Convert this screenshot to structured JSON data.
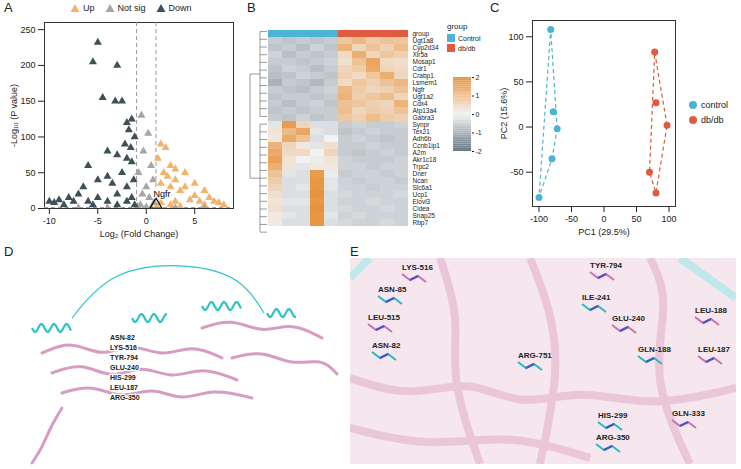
{
  "chart_data": [
    {
      "panel": "A",
      "type": "scatter",
      "x_label": "Log₂ (Fold Change)",
      "y_label": "-Log₁₀ (P value)",
      "xlim": [
        -10.5,
        9
      ],
      "xticks": [
        -10,
        -5,
        0,
        5
      ],
      "ylim": [
        0,
        260
      ],
      "yticks": [
        0,
        50,
        100,
        150,
        200,
        250
      ],
      "marker": "triangle",
      "legend": "top",
      "series": [
        {
          "name": "Up",
          "color": "#f2b36d",
          "x": [
            1.5,
            2,
            1.2,
            2.5,
            3,
            1.8,
            4,
            2.2,
            3,
            5,
            1.5,
            2.5,
            4,
            6,
            3.5,
            1.3,
            2,
            5,
            7,
            7.5,
            8,
            4.5,
            3,
            1.5,
            2.5,
            6,
            1.1,
            3.5,
            5.5,
            6.5
          ],
          "y": [
            90,
            85,
            70,
            60,
            55,
            50,
            50,
            45,
            40,
            35,
            35,
            30,
            30,
            25,
            25,
            20,
            20,
            18,
            10,
            8,
            5,
            12,
            10,
            8,
            5,
            5,
            3,
            3,
            10,
            15
          ]
        },
        {
          "name": "Not sig",
          "color": "#a6a6a6",
          "x": [
            -0.5,
            0.2,
            -0.3,
            0.5,
            -0.8,
            0.7,
            0,
            -0.4,
            0.3,
            0.8,
            -0.6,
            0,
            0.5,
            -0.9,
            3,
            -4,
            6,
            -7
          ],
          "y": [
            130,
            105,
            80,
            60,
            50,
            40,
            30,
            20,
            15,
            8,
            5,
            2,
            1,
            3,
            0.8,
            1,
            0.5,
            0.9
          ]
        },
        {
          "name": "Down",
          "color": "#3e5058",
          "x": [
            -5,
            -5.5,
            -3,
            -3.2,
            -2.5,
            -4.5,
            -1.5,
            -2,
            -1.8,
            -1.2,
            -4,
            -3,
            -2,
            -1.5,
            -6,
            -8,
            -10,
            -9,
            -7,
            -6.5,
            -5,
            -4,
            -3.5,
            -2.5,
            -1.3,
            -2,
            -3,
            -5,
            -6,
            -4,
            -2,
            -1.5,
            -7.5,
            -9.5,
            -8.5,
            -1.2,
            -3,
            -5.5,
            -2.2,
            -1.6
          ],
          "y": [
            232,
            205,
            200,
            150,
            150,
            155,
            125,
            120,
            110,
            100,
            80,
            75,
            70,
            65,
            60,
            15,
            10,
            12,
            20,
            30,
            40,
            45,
            35,
            50,
            40,
            30,
            20,
            15,
            10,
            10,
            10,
            15,
            10,
            8,
            5,
            5,
            5,
            5,
            90,
            85
          ]
        }
      ],
      "thresholds": {
        "x": [
          -1,
          1
        ],
        "y": 1.3
      },
      "annotations": [
        {
          "text": "Ngfr",
          "x": 1.0,
          "y": 5
        }
      ]
    },
    {
      "panel": "B",
      "type": "heatmap",
      "legend": "right",
      "tick_labels": "y",
      "rows": [
        "Ugt1a8",
        "Cyp2d34",
        "Xlr5a",
        "Mosap1",
        "Cdr1",
        "Crabp1",
        "Lsmem1",
        "Ngfr",
        "Ugt1a2",
        "Cdx4",
        "Atp13a4",
        "Gabra3",
        "Synpr",
        "Tex21",
        "Adh6b",
        "Ccnb1ip1",
        "A2m",
        "Akr1c18",
        "Trpc2",
        "Dner",
        "Ncan",
        "Slc6a1",
        "Ucp1",
        "Elovl3",
        "Cidea",
        "Snap25",
        "Rbp7"
      ],
      "group_label": "group",
      "groups": [
        {
          "name": "Control",
          "color": "#4db3d6"
        },
        {
          "name": "db/db",
          "color": "#e05a3f"
        }
      ],
      "column_groups": [
        "Control",
        "Control",
        "Control",
        "Control",
        "Control",
        "db/db",
        "db/db",
        "db/db",
        "db/db",
        "db/db"
      ],
      "cells": [
        [
          -0.6,
          -0.7,
          -0.6,
          -0.7,
          -0.6,
          0.9,
          1.2,
          0.8,
          1.0,
          0.9
        ],
        [
          -0.7,
          -0.6,
          -0.8,
          -0.5,
          -0.7,
          1.3,
          0.6,
          1.0,
          0.7,
          1.1
        ],
        [
          -0.5,
          -0.8,
          -0.6,
          -0.7,
          -0.6,
          0.5,
          1.4,
          0.6,
          0.9,
          0.7
        ],
        [
          -0.6,
          -0.6,
          -0.7,
          -0.6,
          -0.5,
          0.4,
          1.0,
          1.6,
          0.5,
          0.4
        ],
        [
          -0.7,
          -0.5,
          -0.6,
          -0.8,
          -0.6,
          0.6,
          0.8,
          1.5,
          0.6,
          0.5
        ],
        [
          -0.8,
          -0.7,
          -0.5,
          -0.6,
          -0.7,
          0.7,
          0.5,
          0.9,
          1.4,
          0.6
        ],
        [
          -1.0,
          -0.6,
          -0.7,
          -0.9,
          -0.6,
          0.5,
          0.9,
          0.7,
          1.0,
          1.2
        ],
        [
          -0.6,
          -0.7,
          -0.8,
          -0.6,
          -0.5,
          1.2,
          0.8,
          0.6,
          0.7,
          1.0
        ],
        [
          -0.7,
          -0.6,
          -0.6,
          -0.7,
          -0.6,
          1.3,
          0.7,
          0.9,
          1.1,
          0.6
        ],
        [
          -0.6,
          -0.8,
          -0.6,
          -0.5,
          -0.7,
          1.0,
          0.9,
          0.7,
          0.6,
          1.3
        ],
        [
          -0.7,
          -0.6,
          -0.7,
          -0.6,
          -0.6,
          1.1,
          0.6,
          0.8,
          0.7,
          1.0
        ],
        [
          -0.6,
          -0.7,
          -0.5,
          -0.7,
          -0.6,
          0.9,
          0.7,
          1.1,
          0.8,
          0.7
        ],
        [
          -0.2,
          1.8,
          0.6,
          -0.3,
          -0.3,
          -0.6,
          -0.5,
          -0.6,
          -0.6,
          -0.5
        ],
        [
          0.3,
          1.2,
          1.6,
          -0.2,
          -0.3,
          -0.7,
          -0.6,
          -0.5,
          -0.6,
          -0.6
        ],
        [
          0.2,
          1.5,
          1.0,
          -0.3,
          0.0,
          -0.6,
          -0.5,
          -0.6,
          -0.7,
          -0.6
        ],
        [
          1.3,
          0.6,
          0.2,
          -0.2,
          0.4,
          -0.6,
          -0.6,
          -0.5,
          -0.6,
          -0.6
        ],
        [
          1.5,
          0.5,
          0.5,
          0.0,
          0.6,
          -0.6,
          -0.7,
          -0.6,
          -0.5,
          -0.6
        ],
        [
          1.7,
          0.3,
          0.0,
          -0.1,
          0.3,
          -0.5,
          -0.6,
          -0.6,
          -0.6,
          -0.5
        ],
        [
          1.4,
          0.3,
          -0.2,
          0.2,
          0.2,
          -0.5,
          -0.5,
          -0.6,
          -0.5,
          -0.5
        ],
        [
          1.0,
          -0.2,
          -0.3,
          1.8,
          -0.1,
          -0.6,
          -0.5,
          -0.5,
          -0.6,
          -0.5
        ],
        [
          0.8,
          -0.3,
          -0.3,
          1.9,
          -0.2,
          -0.5,
          -0.6,
          -0.5,
          -0.5,
          -0.6
        ],
        [
          0.6,
          -0.3,
          -0.2,
          1.9,
          -0.2,
          -0.5,
          -0.5,
          -0.6,
          -0.5,
          -0.5
        ],
        [
          0.4,
          -0.3,
          -0.3,
          2.0,
          -0.3,
          -0.4,
          -0.5,
          -0.5,
          -0.5,
          -0.4
        ],
        [
          0.3,
          -0.2,
          -0.2,
          1.9,
          -0.3,
          -0.5,
          -0.5,
          -0.4,
          -0.5,
          -0.5
        ],
        [
          0.4,
          -0.3,
          -0.3,
          2.0,
          -0.3,
          -0.4,
          -0.5,
          -0.5,
          -0.4,
          -0.5
        ],
        [
          0.2,
          -0.2,
          -0.3,
          1.9,
          -0.2,
          -0.5,
          -0.4,
          -0.5,
          -0.5,
          -0.5
        ],
        [
          0.2,
          -0.3,
          -0.3,
          1.9,
          -0.3,
          -0.4,
          -0.5,
          -0.5,
          -0.4,
          -0.5
        ]
      ],
      "colorbar": {
        "lim": [
          -2,
          2
        ],
        "ticks": [
          2,
          1,
          0,
          -1,
          -2
        ],
        "colors": [
          "#5f7480",
          "#f2f2f2",
          "#e8923a"
        ]
      }
    },
    {
      "panel": "C",
      "type": "scatter",
      "x_label": "PC1 (29.5%)",
      "y_label": "PC2 (15.6%)",
      "xlim": [
        -110,
        110
      ],
      "xticks": [
        -100,
        -50,
        0,
        50,
        100
      ],
      "ylim": [
        -88,
        118
      ],
      "yticks": [
        -50,
        0,
        50,
        100
      ],
      "marker": "circle",
      "legend": "right",
      "series": [
        {
          "name": "control",
          "color": "#4db3d6",
          "x": [
            -82,
            -78,
            -72,
            -80,
            -100
          ],
          "y": [
            108,
            17,
            -2,
            -35,
            -78
          ]
        },
        {
          "name": "db/db",
          "color": "#e05a3f",
          "x": [
            78,
            80,
            97,
            70,
            80
          ],
          "y": [
            83,
            27,
            2,
            -50,
            -73
          ]
        }
      ]
    },
    {
      "panel": "D",
      "type": "structure",
      "labels": [
        "ASN-82",
        "LYS-516",
        "TYR-794",
        "GLU-240",
        "HIS-299",
        "LEU-187",
        "ARG-350"
      ]
    },
    {
      "panel": "E",
      "type": "structure",
      "labels": [
        "LYS-516",
        "ASN-85",
        "LEU-515",
        "ASN-82",
        "TYR-794",
        "ILE-241",
        "GLU-240",
        "ARG-751",
        "LEU-188",
        "GLN-188",
        "LEU-187",
        "HIS-299",
        "GLN-333",
        "ARG-350"
      ]
    }
  ]
}
